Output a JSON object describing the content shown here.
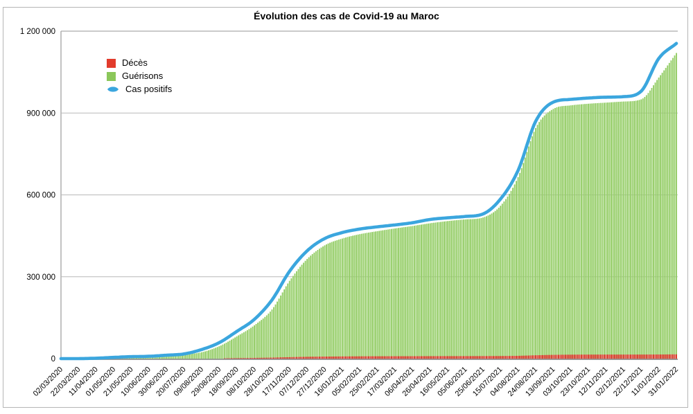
{
  "chart_data": {
    "type": "bar",
    "title": "Évolution des cas de Covid-19 au Maroc",
    "xlabel": "",
    "ylabel": "",
    "ylim": [
      0,
      1200000
    ],
    "grid": "horizontal",
    "grid_values": [
      300000,
      600000,
      900000
    ],
    "legend_position": "top-left-inside",
    "bar_count": 351,
    "y_tick_labels": [
      "0",
      "300 000",
      "600 000",
      "900 000",
      "1 200 000"
    ],
    "y_tick_values": [
      0,
      300000,
      600000,
      900000,
      1200000
    ],
    "categories": [
      "02/03/2020",
      "22/03/2020",
      "11/04/2020",
      "01/05/2020",
      "21/05/2020",
      "10/06/2020",
      "30/06/2020",
      "20/07/2020",
      "09/08/2020",
      "29/08/2020",
      "18/09/2020",
      "08/10/2020",
      "28/10/2020",
      "17/11/2020",
      "07/12/2020",
      "27/12/2020",
      "16/01/2021",
      "05/02/2021",
      "25/02/2021",
      "17/03/2021",
      "06/04/2021",
      "26/04/2021",
      "16/05/2021",
      "05/06/2021",
      "25/06/2021",
      "15/07/2021",
      "04/08/2021",
      "24/08/2021",
      "13/09/2021",
      "03/10/2021",
      "23/10/2021",
      "12/11/2021",
      "02/12/2021",
      "22/12/2021",
      "11/01/2022",
      "31/01/2022"
    ],
    "series": [
      {
        "name": "Décès",
        "type": "bar",
        "color": "#e23b2c",
        "highlight_color": "#c5342a",
        "values": [
          0,
          4,
          111,
          171,
          196,
          211,
          228,
          280,
          515,
          1052,
          1795,
          2530,
          3650,
          5260,
          6590,
          7375,
          7942,
          8370,
          8620,
          8750,
          8860,
          9020,
          9110,
          9160,
          9270,
          9500,
          10200,
          12200,
          13700,
          14400,
          14700,
          14790,
          14820,
          14880,
          15120,
          15600
        ]
      },
      {
        "name": "Guérisons",
        "type": "bar",
        "color": "#8bc75a",
        "highlight_color": "#a9da83",
        "values": [
          0,
          3,
          127,
          1083,
          4295,
          7488,
          8920,
          14655,
          23259,
          45258,
          81380,
          122000,
          180000,
          285000,
          365000,
          415000,
          440000,
          456000,
          467000,
          477000,
          486000,
          496000,
          504000,
          510000,
          517000,
          560000,
          665000,
          845000,
          915000,
          928000,
          934000,
          938000,
          942000,
          950000,
          1030000,
          1120000
        ]
      },
      {
        "name": "Cas positifs",
        "type": "line",
        "color": "#3ba6de",
        "values": [
          2,
          115,
          1545,
          4569,
          7211,
          8508,
          12533,
          17236,
          33237,
          58489,
          99816,
          144000,
          215000,
          320000,
          395000,
          440000,
          462000,
          475000,
          483000,
          490000,
          498000,
          510000,
          516000,
          521000,
          530000,
          585000,
          690000,
          870000,
          940000,
          950000,
          955000,
          958000,
          960000,
          980000,
          1100000,
          1155000
        ]
      }
    ]
  }
}
